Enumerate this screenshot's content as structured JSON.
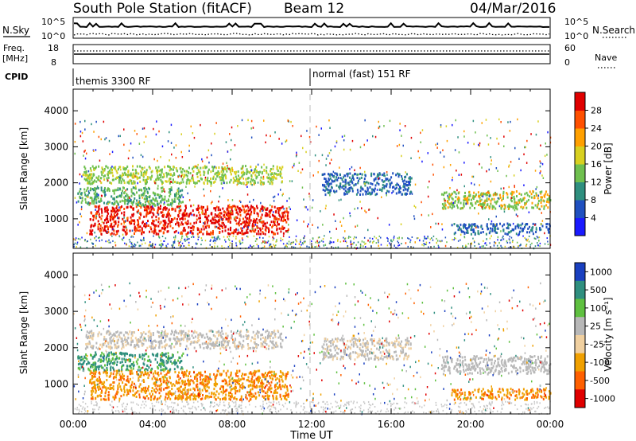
{
  "header": {
    "station": "South Pole Station (fitACF)",
    "beam": "Beam 12",
    "date": "04/Mar/2016"
  },
  "top_panels": {
    "nsky_label": "N.Sky",
    "nsearch_label": "N.Search",
    "nsky_tick_top": "10^5",
    "nsky_tick_bot": "10^0",
    "nsearch_tick_top": "10^5",
    "nsearch_tick_bot": "10^0",
    "freq_label_1": "Freq.",
    "freq_label_2": "[MHz]",
    "freq_tick_top": "18",
    "freq_tick_bot": "8",
    "nave_label": "Nave",
    "nave_tick_top": "60",
    "nave_tick_bot": "0",
    "cpid_label": "CPID",
    "cpid_segments": [
      "themis 3300 RF",
      "normal (fast) 151 RF"
    ]
  },
  "x_axis": {
    "label": "Time UT",
    "ticks": [
      "00:00",
      "04:00",
      "08:00",
      "12:00",
      "16:00",
      "20:00",
      "00:00"
    ]
  },
  "chart_data": [
    {
      "type": "heatmap",
      "title": "Power",
      "ylabel": "Slant Range [km]",
      "xlabel": "Time UT",
      "x_range_hours": [
        0,
        24
      ],
      "ylim": [
        180,
        4600
      ],
      "y_ticks": [
        1000,
        2000,
        3000,
        4000
      ],
      "colorbar_label": "Power [dB]",
      "colorbar_ticks": [
        "4",
        "8",
        "12",
        "16",
        "20",
        "24",
        "28"
      ],
      "colorbar_colors": [
        "#1a1aff",
        "#2050c0",
        "#2f8f7f",
        "#6fc04f",
        "#d8d020",
        "#ffa000",
        "#ff5000",
        "#e00000"
      ],
      "regions": [
        {
          "t0": 0.8,
          "t1": 10.8,
          "r0": 600,
          "r1": 1400,
          "level": "28 dB (strong)"
        },
        {
          "t0": 0.2,
          "t1": 5.5,
          "r0": 1400,
          "r1": 1900,
          "level": "8-12 dB"
        },
        {
          "t0": 0.5,
          "t1": 10.5,
          "r0": 2000,
          "r1": 2500,
          "level": "8-16 dB"
        },
        {
          "t0": 12.5,
          "t1": 17,
          "r0": 1700,
          "r1": 2300,
          "level": "4-8 dB"
        },
        {
          "t0": 18.5,
          "t1": 24,
          "r0": 1300,
          "r1": 1800,
          "level": "8-20 dB"
        },
        {
          "t0": 19,
          "t1": 24,
          "r0": 600,
          "r1": 900,
          "level": "4-8 dB"
        }
      ]
    },
    {
      "type": "heatmap",
      "title": "Velocity",
      "ylabel": "Slant Range [km]",
      "xlabel": "Time UT",
      "x_range_hours": [
        0,
        24
      ],
      "ylim": [
        180,
        4600
      ],
      "y_ticks": [
        1000,
        2000,
        3000,
        4000
      ],
      "colorbar_label": "Velocity [m s⁻¹]",
      "colorbar_ticks": [
        "1000",
        "500",
        "100",
        "25",
        "-25",
        "-100",
        "-500",
        "-1000"
      ],
      "colorbar_colors": [
        "#1a40c0",
        "#2f8f7f",
        "#5fc040",
        "#b8b8b8",
        "#f0d0a0",
        "#f0a000",
        "#ff6000",
        "#e00000"
      ],
      "regions": [
        {
          "t0": 0.8,
          "t1": 10.8,
          "r0": 600,
          "r1": 1400,
          "level": "-100 to -500 m/s"
        },
        {
          "t0": 0.2,
          "t1": 5.5,
          "r0": 1400,
          "r1": 1900,
          "level": "100-500 m/s"
        },
        {
          "t0": 0.5,
          "t1": 10.5,
          "r0": 2000,
          "r1": 2500,
          "level": "-25 to 25 m/s"
        },
        {
          "t0": 12.5,
          "t1": 17,
          "r0": 1700,
          "r1": 2300,
          "level": "-25 to 25 m/s"
        },
        {
          "t0": 18.5,
          "t1": 24,
          "r0": 1300,
          "r1": 1800,
          "level": "-25 to 25 m/s"
        },
        {
          "t0": 19,
          "t1": 24,
          "r0": 600,
          "r1": 900,
          "level": "-100 to -500 m/s"
        }
      ]
    }
  ]
}
